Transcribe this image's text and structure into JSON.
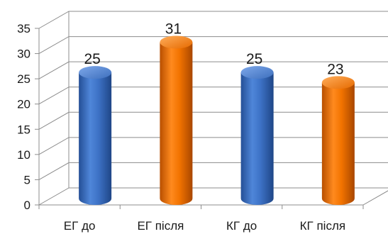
{
  "chart_data": {
    "type": "bar",
    "style": "3d-cylinder",
    "title": "",
    "xlabel": "",
    "ylabel": "",
    "categories": [
      "ЕГ до",
      "ЕГ після",
      "КГ до",
      "КГ після"
    ],
    "values": [
      25,
      31,
      25,
      23
    ],
    "data_labels": [
      "25",
      "31",
      "25",
      "23"
    ],
    "bar_colors": [
      "#3a6fc4",
      "#f07000",
      "#3a6fc4",
      "#f07000"
    ],
    "ylim": [
      0,
      35
    ],
    "yticks": [
      0,
      5,
      10,
      15,
      20,
      25,
      30,
      35
    ],
    "ytick_labels": [
      "0",
      "5",
      "10",
      "15",
      "20",
      "25",
      "30",
      "35"
    ],
    "grid": true,
    "legend": "none"
  }
}
